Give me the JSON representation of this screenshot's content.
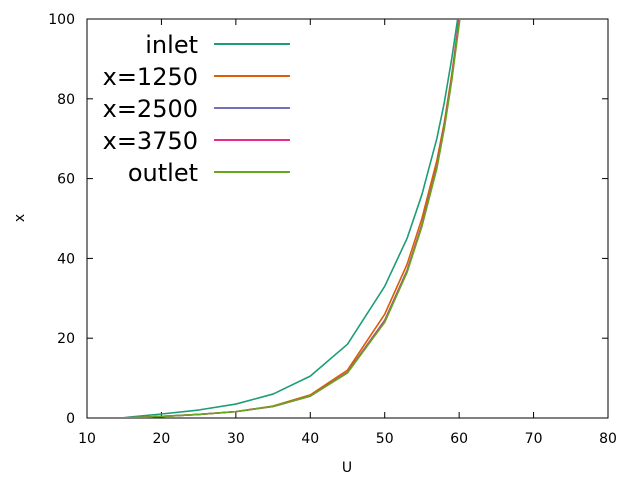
{
  "chart_data": {
    "type": "line",
    "title": "",
    "xlabel": "U",
    "ylabel": "x",
    "xlim": [
      10,
      80
    ],
    "ylim": [
      0,
      100
    ],
    "xticks": [
      10,
      20,
      30,
      40,
      50,
      60,
      70,
      80
    ],
    "yticks": [
      0,
      20,
      40,
      60,
      80,
      100
    ],
    "grid": false,
    "legend_position": "top-left",
    "series": [
      {
        "name": "inlet",
        "color": "#1b9e77",
        "points": [
          [
            14.5,
            0
          ],
          [
            20,
            1.0
          ],
          [
            25,
            2.0
          ],
          [
            30,
            3.5
          ],
          [
            35,
            6.0
          ],
          [
            40,
            10.5
          ],
          [
            45,
            18.5
          ],
          [
            50,
            33.0
          ],
          [
            53,
            45.0
          ],
          [
            55,
            56.0
          ],
          [
            57,
            70.0
          ],
          [
            58,
            79.0
          ],
          [
            59,
            90.0
          ],
          [
            59.8,
            100
          ]
        ]
      },
      {
        "name": "x=1250",
        "color": "#d95f02",
        "points": [
          [
            14.5,
            0
          ],
          [
            20,
            0.4
          ],
          [
            25,
            0.9
          ],
          [
            30,
            1.6
          ],
          [
            35,
            3.0
          ],
          [
            40,
            5.8
          ],
          [
            45,
            12.0
          ],
          [
            50,
            26.0
          ],
          [
            53,
            38.5
          ],
          [
            55,
            50.0
          ],
          [
            57,
            64.5
          ],
          [
            58,
            74.0
          ],
          [
            59,
            86.0
          ],
          [
            60,
            100
          ]
        ]
      },
      {
        "name": "x=2500",
        "color": "#7570b3",
        "points": [
          [
            14.5,
            0
          ],
          [
            20,
            0.4
          ],
          [
            25,
            0.9
          ],
          [
            30,
            1.6
          ],
          [
            35,
            2.9
          ],
          [
            40,
            5.5
          ],
          [
            45,
            11.5
          ],
          [
            50,
            24.5
          ],
          [
            53,
            37.0
          ],
          [
            55,
            48.5
          ],
          [
            57,
            63.0
          ],
          [
            58,
            73.0
          ],
          [
            59,
            85.0
          ],
          [
            60,
            100
          ]
        ]
      },
      {
        "name": "x=3750",
        "color": "#e7298a",
        "points": [
          [
            14.5,
            0
          ],
          [
            20,
            0.4
          ],
          [
            25,
            0.9
          ],
          [
            30,
            1.6
          ],
          [
            35,
            2.9
          ],
          [
            40,
            5.5
          ],
          [
            45,
            11.4
          ],
          [
            50,
            24.3
          ],
          [
            53,
            36.8
          ],
          [
            55,
            48.3
          ],
          [
            57,
            62.8
          ],
          [
            58,
            72.8
          ],
          [
            59,
            84.8
          ],
          [
            60,
            100
          ]
        ]
      },
      {
        "name": "outlet",
        "color": "#66a61e",
        "points": [
          [
            14.5,
            0
          ],
          [
            20,
            0.4
          ],
          [
            25,
            0.9
          ],
          [
            30,
            1.6
          ],
          [
            35,
            2.9
          ],
          [
            40,
            5.5
          ],
          [
            45,
            11.3
          ],
          [
            50,
            24.0
          ],
          [
            53,
            36.5
          ],
          [
            55,
            48.0
          ],
          [
            57,
            62.5
          ],
          [
            58,
            72.5
          ],
          [
            59,
            84.5
          ],
          [
            60.1,
            100
          ]
        ]
      }
    ]
  }
}
